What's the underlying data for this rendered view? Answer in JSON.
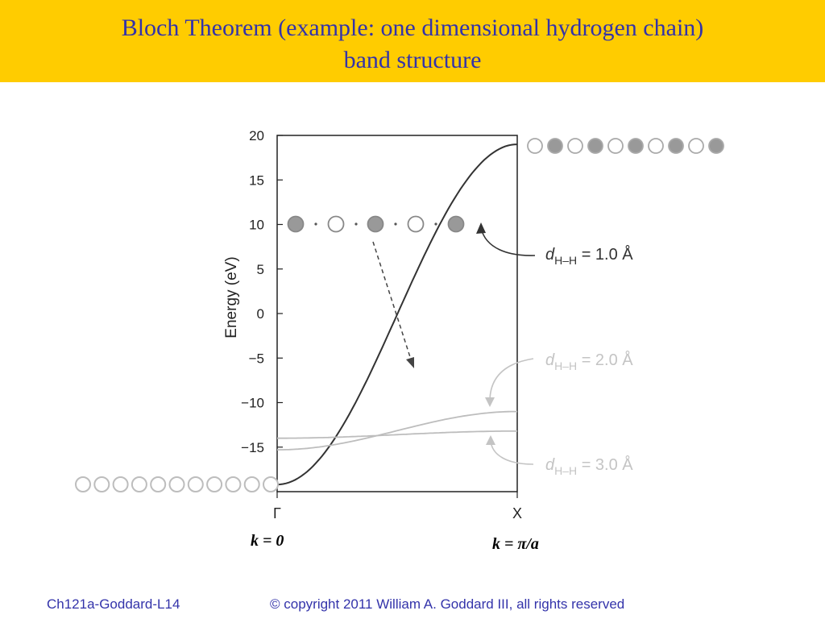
{
  "slide": {
    "title_line1": "Bloch Theorem (example: one dimensional hydrogen chain)",
    "title_line2": "band structure",
    "k_left": "k = 0",
    "k_right": "k = π/a",
    "footer_left": "Ch121a-Goddard-L14",
    "footer_right": "© copyright 2011 William A. Goddard III, all rights reserved"
  },
  "colors": {
    "header_bg": "#ffcc00",
    "title_text": "#3333aa",
    "band_dark": "#333333",
    "band_light": "#bdbdbd",
    "atom_filled": "#999999"
  },
  "chart_data": {
    "type": "line",
    "ylabel": "Energy (eV)",
    "xticks": [
      "Γ",
      "X"
    ],
    "yticks": [
      "20",
      "15",
      "10",
      "5",
      "0",
      "−5",
      "−10",
      "−15"
    ],
    "ylim": [
      -20,
      20
    ],
    "series": [
      {
        "name": "dH–H = 1.0 Å",
        "start_energy": -19.2,
        "end_energy": 19.0
      },
      {
        "name": "dH–H = 2.0 Å",
        "start_energy": -15.3,
        "end_energy": -11.0
      },
      {
        "name": "dH–H = 3.0 Å",
        "start_energy": -14.0,
        "end_energy": -13.2
      }
    ],
    "annotations": [
      {
        "label": "dH–H = 1.0 Å",
        "sub": "H–H",
        "prefix": "d",
        "suffix": " = 1.0 Å"
      },
      {
        "label": "dH–H = 2.0 Å",
        "sub": "H–H",
        "prefix": "d",
        "suffix": " = 2.0 Å"
      },
      {
        "label": "dH–H = 3.0 Å",
        "sub": "H–H",
        "prefix": "d",
        "suffix": " = 3.0 Å"
      }
    ],
    "atom_chains": {
      "k_zero_bottom": "all in phase (11 open circles)",
      "k_pi_top": "alternating phase (10 circles)",
      "middle": "alternating with nodes (5 circles)"
    }
  }
}
